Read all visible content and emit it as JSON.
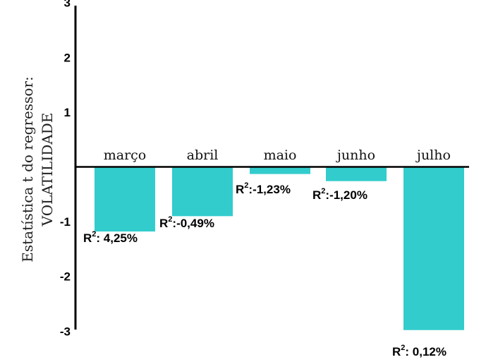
{
  "chart_data": {
    "type": "bar",
    "categories": [
      "março",
      "abril",
      "maio",
      "junho",
      "julho"
    ],
    "values": [
      -1.18,
      -0.9,
      -0.13,
      -0.26,
      -2.98
    ],
    "r2_labels": [
      {
        "prefix": "R",
        "sup": "2",
        "text": ": 4,25%"
      },
      {
        "prefix": "R",
        "sup": "2",
        "text": ":-0,49%"
      },
      {
        "prefix": "R",
        "sup": "2",
        "text": ":-1,23%"
      },
      {
        "prefix": "R",
        "sup": "2",
        "text": ":-1,20%"
      },
      {
        "prefix": "R",
        "sup": "2",
        "text": ": 0,12%"
      }
    ],
    "ylabel_line1": "Estatística t  do regressor:",
    "ylabel_line2": "VOLATILIDADE",
    "ylim": [
      -3.15,
      3.15
    ],
    "yticks": [
      "3",
      "2",
      "1",
      "-1",
      "-2",
      "-3"
    ],
    "ytick_values": [
      3,
      2,
      1,
      -1,
      -2,
      -3
    ],
    "bar_color": "#33cccc",
    "grid": false,
    "legend": "none"
  }
}
